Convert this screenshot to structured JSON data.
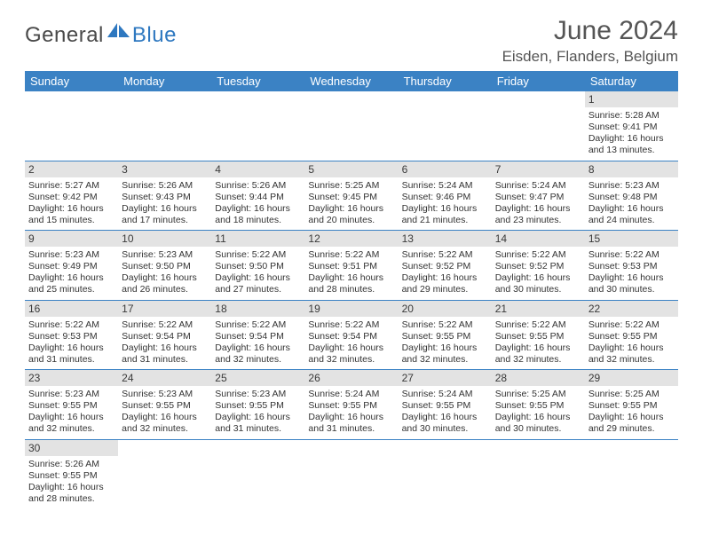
{
  "logo": {
    "text1": "General",
    "text2": "Blue"
  },
  "title": "June 2024",
  "location": "Eisden, Flanders, Belgium",
  "dayHeaders": [
    "Sunday",
    "Monday",
    "Tuesday",
    "Wednesday",
    "Thursday",
    "Friday",
    "Saturday"
  ],
  "colors": {
    "headerBg": "#3b82c4",
    "dayBg": "#e3e3e3",
    "border": "#3b82c4"
  },
  "weeks": [
    [
      null,
      null,
      null,
      null,
      null,
      null,
      {
        "n": "1",
        "sr": "5:28 AM",
        "ss": "9:41 PM",
        "dl": "16 hours and 13 minutes."
      }
    ],
    [
      {
        "n": "2",
        "sr": "5:27 AM",
        "ss": "9:42 PM",
        "dl": "16 hours and 15 minutes."
      },
      {
        "n": "3",
        "sr": "5:26 AM",
        "ss": "9:43 PM",
        "dl": "16 hours and 17 minutes."
      },
      {
        "n": "4",
        "sr": "5:26 AM",
        "ss": "9:44 PM",
        "dl": "16 hours and 18 minutes."
      },
      {
        "n": "5",
        "sr": "5:25 AM",
        "ss": "9:45 PM",
        "dl": "16 hours and 20 minutes."
      },
      {
        "n": "6",
        "sr": "5:24 AM",
        "ss": "9:46 PM",
        "dl": "16 hours and 21 minutes."
      },
      {
        "n": "7",
        "sr": "5:24 AM",
        "ss": "9:47 PM",
        "dl": "16 hours and 23 minutes."
      },
      {
        "n": "8",
        "sr": "5:23 AM",
        "ss": "9:48 PM",
        "dl": "16 hours and 24 minutes."
      }
    ],
    [
      {
        "n": "9",
        "sr": "5:23 AM",
        "ss": "9:49 PM",
        "dl": "16 hours and 25 minutes."
      },
      {
        "n": "10",
        "sr": "5:23 AM",
        "ss": "9:50 PM",
        "dl": "16 hours and 26 minutes."
      },
      {
        "n": "11",
        "sr": "5:22 AM",
        "ss": "9:50 PM",
        "dl": "16 hours and 27 minutes."
      },
      {
        "n": "12",
        "sr": "5:22 AM",
        "ss": "9:51 PM",
        "dl": "16 hours and 28 minutes."
      },
      {
        "n": "13",
        "sr": "5:22 AM",
        "ss": "9:52 PM",
        "dl": "16 hours and 29 minutes."
      },
      {
        "n": "14",
        "sr": "5:22 AM",
        "ss": "9:52 PM",
        "dl": "16 hours and 30 minutes."
      },
      {
        "n": "15",
        "sr": "5:22 AM",
        "ss": "9:53 PM",
        "dl": "16 hours and 30 minutes."
      }
    ],
    [
      {
        "n": "16",
        "sr": "5:22 AM",
        "ss": "9:53 PM",
        "dl": "16 hours and 31 minutes."
      },
      {
        "n": "17",
        "sr": "5:22 AM",
        "ss": "9:54 PM",
        "dl": "16 hours and 31 minutes."
      },
      {
        "n": "18",
        "sr": "5:22 AM",
        "ss": "9:54 PM",
        "dl": "16 hours and 32 minutes."
      },
      {
        "n": "19",
        "sr": "5:22 AM",
        "ss": "9:54 PM",
        "dl": "16 hours and 32 minutes."
      },
      {
        "n": "20",
        "sr": "5:22 AM",
        "ss": "9:55 PM",
        "dl": "16 hours and 32 minutes."
      },
      {
        "n": "21",
        "sr": "5:22 AM",
        "ss": "9:55 PM",
        "dl": "16 hours and 32 minutes."
      },
      {
        "n": "22",
        "sr": "5:22 AM",
        "ss": "9:55 PM",
        "dl": "16 hours and 32 minutes."
      }
    ],
    [
      {
        "n": "23",
        "sr": "5:23 AM",
        "ss": "9:55 PM",
        "dl": "16 hours and 32 minutes."
      },
      {
        "n": "24",
        "sr": "5:23 AM",
        "ss": "9:55 PM",
        "dl": "16 hours and 32 minutes."
      },
      {
        "n": "25",
        "sr": "5:23 AM",
        "ss": "9:55 PM",
        "dl": "16 hours and 31 minutes."
      },
      {
        "n": "26",
        "sr": "5:24 AM",
        "ss": "9:55 PM",
        "dl": "16 hours and 31 minutes."
      },
      {
        "n": "27",
        "sr": "5:24 AM",
        "ss": "9:55 PM",
        "dl": "16 hours and 30 minutes."
      },
      {
        "n": "28",
        "sr": "5:25 AM",
        "ss": "9:55 PM",
        "dl": "16 hours and 30 minutes."
      },
      {
        "n": "29",
        "sr": "5:25 AM",
        "ss": "9:55 PM",
        "dl": "16 hours and 29 minutes."
      }
    ],
    [
      {
        "n": "30",
        "sr": "5:26 AM",
        "ss": "9:55 PM",
        "dl": "16 hours and 28 minutes."
      },
      null,
      null,
      null,
      null,
      null,
      null
    ]
  ],
  "labels": {
    "sunrise": "Sunrise:",
    "sunset": "Sunset:",
    "daylight": "Daylight:"
  }
}
